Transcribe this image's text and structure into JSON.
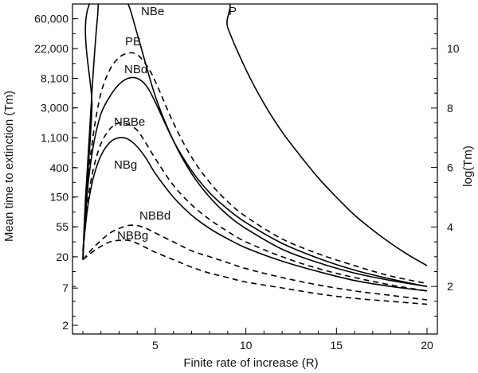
{
  "chart_data": {
    "type": "line",
    "xlabel": "Finite rate of increase (R)",
    "ylabel_left": "Mean time to extinction (Tm)",
    "ylabel_right": "log(Tm)",
    "xlim": [
      0,
      20.5
    ],
    "ylim_log": [
      0.4,
      11.5
    ],
    "x_ticks": [
      {
        "value": 5,
        "label": "5"
      },
      {
        "value": 10,
        "label": "10"
      },
      {
        "value": 15,
        "label": "15"
      },
      {
        "value": 20,
        "label": "20"
      }
    ],
    "left_ticks": [
      {
        "value": 60000,
        "label": "60,000"
      },
      {
        "value": 22000,
        "label": "22,000"
      },
      {
        "value": 8100,
        "label": "8,100"
      },
      {
        "value": 3000,
        "label": "3,000"
      },
      {
        "value": 1100,
        "label": "1,100"
      },
      {
        "value": 400,
        "label": "400"
      },
      {
        "value": 150,
        "label": "150"
      },
      {
        "value": 55,
        "label": "55"
      },
      {
        "value": 20,
        "label": "20"
      },
      {
        "value": 7,
        "label": "7"
      },
      {
        "value": 2,
        "label": "2"
      }
    ],
    "right_ticks": [
      {
        "value": 2,
        "label": "2"
      },
      {
        "value": 4,
        "label": "4"
      },
      {
        "value": 6,
        "label": "6"
      },
      {
        "value": 8,
        "label": "8"
      },
      {
        "value": 10,
        "label": "10"
      }
    ],
    "series": [
      {
        "name": "P",
        "label": "P",
        "dashed": false,
        "x": [
          1.0,
          1.1,
          1.3,
          1.5,
          1.7,
          8.5,
          9,
          10,
          11,
          12,
          13,
          14,
          15,
          16,
          17,
          18,
          19,
          20
        ],
        "y": [
          2.9,
          4.0,
          6.0,
          8.0,
          11.8,
          11.8,
          10.7,
          9.3,
          8.15,
          7.2,
          6.4,
          5.65,
          5.0,
          4.4,
          3.9,
          3.45,
          3.05,
          2.7
        ]
      },
      {
        "name": "NBe",
        "label": "NBe",
        "dashed": false,
        "x": [
          1.0,
          1.15,
          1.35,
          1.55,
          1.8,
          2.0,
          3.0,
          3.5,
          4.0,
          5,
          6,
          7,
          8,
          9,
          10,
          12,
          14,
          16,
          18,
          20
        ],
        "y": [
          3.0,
          5.0,
          7.0,
          9.0,
          11.0,
          11.8,
          11.8,
          11.5,
          10.5,
          8.4,
          6.9,
          5.8,
          5.0,
          4.4,
          3.95,
          3.25,
          2.8,
          2.45,
          2.2,
          2.0
        ]
      },
      {
        "name": "PB",
        "label": "PB",
        "dashed": true,
        "x": [
          1.0,
          1.1,
          1.3,
          1.6,
          2.0,
          2.5,
          3.0,
          3.5,
          4.0,
          4.5,
          5,
          6,
          7,
          8,
          9,
          10,
          12,
          14,
          16,
          18,
          20
        ],
        "y": [
          2.9,
          4.0,
          5.7,
          7.2,
          8.5,
          9.3,
          9.7,
          9.85,
          9.8,
          9.45,
          8.9,
          7.5,
          6.35,
          5.5,
          4.85,
          4.35,
          3.6,
          3.1,
          2.7,
          2.35,
          2.1
        ]
      },
      {
        "name": "NBd",
        "label": "NBd",
        "dashed": false,
        "x": [
          1.0,
          1.1,
          1.3,
          1.6,
          2.0,
          2.5,
          3.0,
          3.5,
          4.0,
          4.5,
          5,
          6,
          7,
          8,
          9,
          10,
          12,
          14,
          16,
          18,
          20
        ],
        "y": [
          2.9,
          4.0,
          5.5,
          6.8,
          7.8,
          8.4,
          8.8,
          9.0,
          9.0,
          8.75,
          8.2,
          6.9,
          5.9,
          5.15,
          4.6,
          4.15,
          3.45,
          2.95,
          2.55,
          2.25,
          2.0
        ]
      },
      {
        "name": "NBBe",
        "label": "NBBe",
        "dashed": true,
        "x": [
          1.0,
          1.1,
          1.3,
          1.6,
          2.0,
          2.5,
          3.0,
          3.5,
          4.0,
          4.5,
          5,
          6,
          7,
          8,
          9,
          10,
          12,
          14,
          16,
          18,
          20
        ],
        "y": [
          2.9,
          3.8,
          5.0,
          6.0,
          6.8,
          7.3,
          7.5,
          7.45,
          7.25,
          6.8,
          6.3,
          5.4,
          4.75,
          4.25,
          3.85,
          3.5,
          3.0,
          2.6,
          2.3,
          2.05,
          1.85
        ]
      },
      {
        "name": "NBg",
        "label": "NBg",
        "dashed": false,
        "x": [
          1.0,
          1.1,
          1.3,
          1.6,
          2.0,
          2.5,
          3.0,
          3.5,
          4.0,
          4.5,
          5,
          6,
          7,
          8,
          9,
          10,
          12,
          14,
          16,
          18,
          20
        ],
        "y": [
          3.2,
          3.8,
          4.8,
          5.7,
          6.4,
          6.85,
          7.0,
          6.95,
          6.7,
          6.3,
          5.8,
          5.0,
          4.4,
          3.95,
          3.6,
          3.3,
          2.85,
          2.5,
          2.2,
          2.0,
          1.85
        ]
      },
      {
        "name": "NBBd",
        "label": "NBBd",
        "dashed": true,
        "x": [
          1.0,
          1.5,
          2.0,
          2.5,
          3.0,
          3.5,
          4.0,
          4.5,
          5,
          6,
          7,
          8,
          9,
          10,
          12,
          14,
          16,
          18,
          20
        ],
        "y": [
          2.9,
          3.25,
          3.55,
          3.8,
          3.95,
          4.05,
          4.05,
          3.95,
          3.8,
          3.5,
          3.2,
          3.0,
          2.8,
          2.6,
          2.3,
          2.05,
          1.85,
          1.7,
          1.55
        ]
      },
      {
        "name": "NBBg",
        "label": "NBBg",
        "dashed": true,
        "x": [
          1.0,
          1.5,
          2.0,
          2.5,
          3.0,
          3.5,
          4.0,
          4.5,
          5,
          6,
          7,
          8,
          9,
          10,
          12,
          14,
          16,
          18,
          20
        ],
        "y": [
          2.9,
          3.15,
          3.35,
          3.5,
          3.55,
          3.55,
          3.45,
          3.3,
          3.15,
          2.9,
          2.65,
          2.45,
          2.3,
          2.15,
          1.95,
          1.75,
          1.6,
          1.5,
          1.4
        ]
      }
    ]
  }
}
